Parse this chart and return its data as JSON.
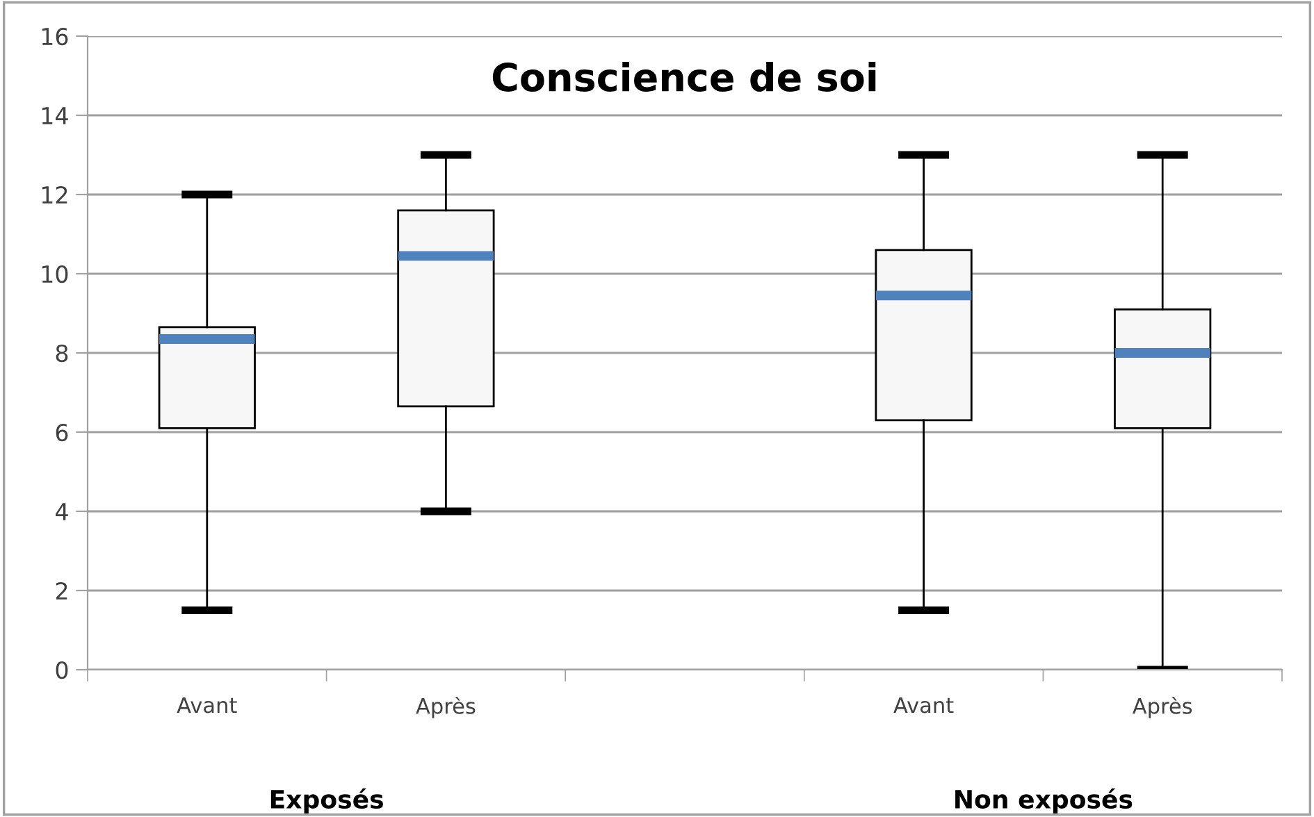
{
  "chart_data": {
    "type": "box",
    "title": "Conscience de soi",
    "categories": [
      "Avant",
      "Après",
      null,
      "Avant",
      "Après"
    ],
    "boxes": [
      {
        "low": 1.5,
        "q1": 6.1,
        "median": 8.35,
        "q3": 8.65,
        "high": 12
      },
      {
        "low": 4,
        "q1": 6.65,
        "median": 10.45,
        "q3": 11.6,
        "high": 13
      },
      null,
      {
        "low": 1.5,
        "q1": 6.3,
        "median": 9.45,
        "q3": 10.6,
        "high": 13
      },
      {
        "low": 0,
        "q1": 6.1,
        "median": 8.0,
        "q3": 9.1,
        "high": 13
      }
    ],
    "ylim": [
      0,
      16
    ],
    "yticks": [
      0,
      2,
      4,
      6,
      8,
      10,
      12,
      14,
      16
    ],
    "grid": "y",
    "annotations": [
      "Exposés",
      "Non exposés"
    ]
  }
}
